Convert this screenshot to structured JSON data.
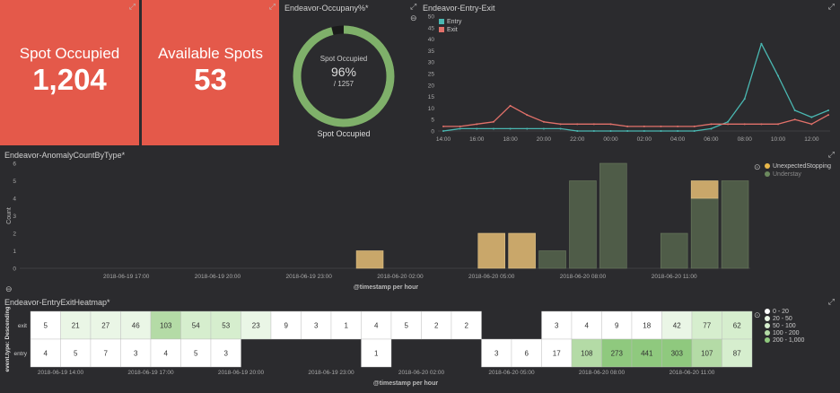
{
  "metric_occupied": {
    "label": "Spot Occupied",
    "value": "1,204"
  },
  "metric_available": {
    "label": "Available Spots",
    "value": "53"
  },
  "occupancy": {
    "title": "Endeavor-Occupany%*",
    "label": "Spot Occupied",
    "percent": "96%",
    "total": "/ 1257",
    "footer": "Spot Occupied",
    "fraction": 0.96
  },
  "entry_exit": {
    "title": "Endeavor-Entry-Exit",
    "legend": [
      {
        "name": "Entry",
        "color": "#4ab8b2"
      },
      {
        "name": "Exit",
        "color": "#e2716a"
      }
    ],
    "xticks": [
      "14:00",
      "16:00",
      "18:00",
      "20:00",
      "22:00",
      "00:00",
      "02:00",
      "04:00",
      "06:00",
      "08:00",
      "10:00",
      "12:00"
    ],
    "yticks": [
      "0",
      "5",
      "10",
      "15",
      "20",
      "25",
      "30",
      "35",
      "40",
      "45",
      "50"
    ]
  },
  "anomaly": {
    "title": "Endeavor-AnomalyCountByType*",
    "ylabel": "Count",
    "xlabel": "@timestamp per hour",
    "yticks": [
      "0",
      "1",
      "2",
      "3",
      "4",
      "5",
      "6"
    ],
    "xticks": [
      "2018-06-19 17:00",
      "2018-06-19 20:00",
      "2018-06-19 23:00",
      "2018-06-20 02:00",
      "2018-06-20 05:00",
      "2018-06-20 08:00",
      "2018-06-20 11:00"
    ],
    "legend": [
      {
        "name": "UnexpectedStopping",
        "color": "#e9b84a"
      },
      {
        "name": "Understay",
        "color": "#6c8a5e"
      }
    ]
  },
  "heatmap": {
    "title": "Endeavor-EntryExitHeatmap*",
    "ylabel": "event.type: Descending",
    "xlabel": "@timestamp per hour",
    "rows": [
      "exit",
      "entry"
    ],
    "exit": [
      "5",
      "21",
      "27",
      "46",
      "103",
      "54",
      "53",
      "23",
      "9",
      "3",
      "1",
      "4",
      "5",
      "2",
      "2",
      "",
      "",
      "3",
      "4",
      "9",
      "18",
      "42",
      "77",
      "62"
    ],
    "entry": [
      "4",
      "5",
      "7",
      "3",
      "4",
      "5",
      "3",
      "",
      "",
      "",
      "",
      "1",
      "",
      "",
      "",
      "3",
      "6",
      "17",
      "108",
      "273",
      "441",
      "303",
      "107",
      "87"
    ],
    "xticks": [
      "2018-06-19 14:00",
      "2018-06-19 17:00",
      "2018-06-19 20:00",
      "2018-06-19 23:00",
      "2018-06-20 02:00",
      "2018-06-20 05:00",
      "2018-06-20 08:00",
      "2018-06-20 11:00"
    ],
    "legend": [
      "0 - 20",
      "20 - 50",
      "50 - 100",
      "100 - 200",
      "200 - 1,000"
    ],
    "legend_colors": [
      "#ffffff",
      "#eaf6e6",
      "#d6eece",
      "#b4dba6",
      "#8fc97e"
    ]
  },
  "chart_data": [
    {
      "type": "line",
      "title": "Endeavor-Entry-Exit",
      "ylim": [
        0,
        50
      ],
      "x": [
        "14:00",
        "15:00",
        "16:00",
        "17:00",
        "18:00",
        "19:00",
        "20:00",
        "21:00",
        "22:00",
        "23:00",
        "00:00",
        "01:00",
        "02:00",
        "03:00",
        "04:00",
        "05:00",
        "06:00",
        "07:00",
        "08:00",
        "09:00",
        "10:00",
        "11:00",
        "12:00",
        "13:00"
      ],
      "series": [
        {
          "name": "Entry",
          "values": [
            0,
            1,
            1,
            1,
            1,
            1,
            1,
            1,
            0,
            0,
            0,
            0,
            0,
            0,
            0,
            0,
            1,
            4,
            14,
            38,
            24,
            9,
            6,
            9
          ]
        },
        {
          "name": "Exit",
          "values": [
            2,
            2,
            3,
            4,
            11,
            7,
            4,
            3,
            3,
            3,
            3,
            2,
            2,
            2,
            2,
            2,
            3,
            3,
            3,
            3,
            3,
            5,
            3,
            7
          ]
        }
      ]
    },
    {
      "type": "bar",
      "title": "Endeavor-AnomalyCountByType*",
      "xlabel": "@timestamp per hour",
      "ylabel": "Count",
      "ylim": [
        0,
        6
      ],
      "categories": [
        "2018-06-19 14:00",
        "2018-06-19 15:00",
        "2018-06-19 16:00",
        "2018-06-19 17:00",
        "2018-06-19 18:00",
        "2018-06-19 19:00",
        "2018-06-19 20:00",
        "2018-06-19 21:00",
        "2018-06-19 22:00",
        "2018-06-19 23:00",
        "2018-06-20 00:00",
        "2018-06-20 01:00",
        "2018-06-20 02:00",
        "2018-06-20 03:00",
        "2018-06-20 04:00",
        "2018-06-20 05:00",
        "2018-06-20 06:00",
        "2018-06-20 07:00",
        "2018-06-20 08:00",
        "2018-06-20 09:00",
        "2018-06-20 10:00",
        "2018-06-20 11:00",
        "2018-06-20 12:00",
        "2018-06-20 13:00"
      ],
      "series": [
        {
          "name": "UnexpectedStopping",
          "values": [
            0,
            0,
            0,
            0,
            0,
            0,
            0,
            0,
            0,
            0,
            0,
            1,
            0,
            0,
            0,
            2,
            2,
            0,
            0,
            0,
            0,
            0,
            1,
            0
          ]
        },
        {
          "name": "Understay",
          "values": [
            0,
            0,
            0,
            0,
            0,
            0,
            0,
            0,
            0,
            0,
            0,
            0,
            0,
            0,
            0,
            0,
            0,
            1,
            5,
            6,
            0,
            2,
            4,
            5
          ]
        }
      ]
    }
  ]
}
